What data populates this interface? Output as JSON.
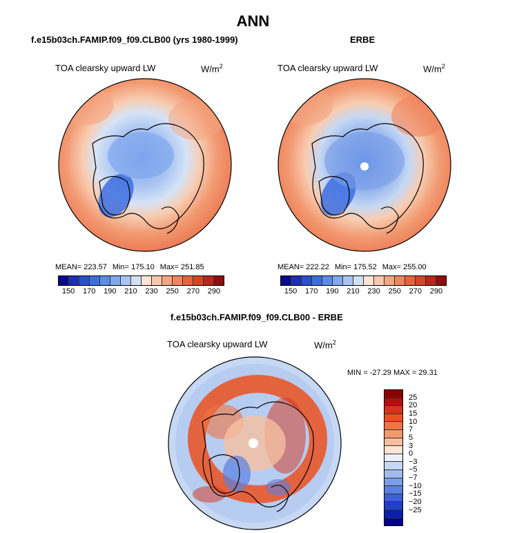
{
  "title": "ANN",
  "panels": [
    {
      "title": "f.e15b03ch.FAMIP.f09_f09.CLB00 (yrs 1980-1999)",
      "variable": "TOA clearsky upward LW",
      "units": "W/m",
      "units_exp": "2",
      "stats": {
        "mean": "MEAN= 223.57",
        "min": "Min= 175.10",
        "max": "Max= 251.85"
      }
    },
    {
      "title": "ERBE",
      "variable": "TOA clearsky upward LW",
      "units": "W/m",
      "units_exp": "2",
      "stats": {
        "mean": "MEAN= 222.22",
        "min": "Min= 175.52",
        "max": "Max= 255.00"
      }
    },
    {
      "title": "f.e15b03ch.FAMIP.f09_f09.CLB00 - ERBE",
      "variable": "TOA clearsky upward LW",
      "units": "W/m",
      "units_exp": "2",
      "stats": {
        "minmax": "MIN = -27.29 MAX =  29.31"
      }
    }
  ],
  "colorbar_abs": {
    "colors": [
      "#0a0a8c",
      "#1f2fb4",
      "#2a4fd0",
      "#3d6ee0",
      "#5a8ce8",
      "#80a8ee",
      "#a9c4f2",
      "#d2e0f6",
      "#fbe4d6",
      "#f8c8ac",
      "#f4a582",
      "#ef845e",
      "#e8623c",
      "#d94427",
      "#b8261c",
      "#8b0e10"
    ],
    "ticks": [
      "150",
      "170",
      "190",
      "210",
      "230",
      "250",
      "270",
      "290"
    ]
  },
  "colorbar_diff": {
    "colors": [
      "#8b0000",
      "#b20f0f",
      "#d63218",
      "#ec5020",
      "#f07440",
      "#f29a6e",
      "#f6c0a0",
      "#fbe4d4",
      "#eaf0f8",
      "#c6d8f4",
      "#a0bcee",
      "#7c9ee6",
      "#5a80e0",
      "#3c60d8",
      "#2040c8",
      "#0a20a8",
      "#00008b"
    ],
    "ticks": [
      "25",
      "20",
      "15",
      "10",
      "7",
      "5",
      "3",
      "0",
      "−3",
      "−5",
      "−7",
      "−10",
      "−15",
      "−20",
      "−25"
    ]
  },
  "chart_data": [
    {
      "type": "heatmap",
      "projection": "north polar stereographic",
      "title": "f.e15b03ch.FAMIP.f09_f09.CLB00 (yrs 1980-1999)",
      "variable": "TOA clearsky upward LW",
      "units": "W/m2",
      "mean": 223.57,
      "min": 175.1,
      "max": 251.85,
      "contour_levels": [
        150,
        160,
        170,
        180,
        190,
        200,
        210,
        220,
        230,
        240,
        250,
        260,
        270,
        280,
        290
      ]
    },
    {
      "type": "heatmap",
      "projection": "north polar stereographic",
      "title": "ERBE",
      "variable": "TOA clearsky upward LW",
      "units": "W/m2",
      "mean": 222.22,
      "min": 175.52,
      "max": 255.0,
      "contour_levels": [
        150,
        160,
        170,
        180,
        190,
        200,
        210,
        220,
        230,
        240,
        250,
        260,
        270,
        280,
        290
      ]
    },
    {
      "type": "heatmap",
      "projection": "north polar stereographic",
      "title": "f.e15b03ch.FAMIP.f09_f09.CLB00 - ERBE",
      "variable": "TOA clearsky upward LW",
      "units": "W/m2",
      "min": -27.29,
      "max": 29.31,
      "contour_levels": [
        -25,
        -20,
        -15,
        -10,
        -7,
        -5,
        -3,
        0,
        3,
        5,
        7,
        10,
        15,
        20,
        25
      ]
    }
  ]
}
